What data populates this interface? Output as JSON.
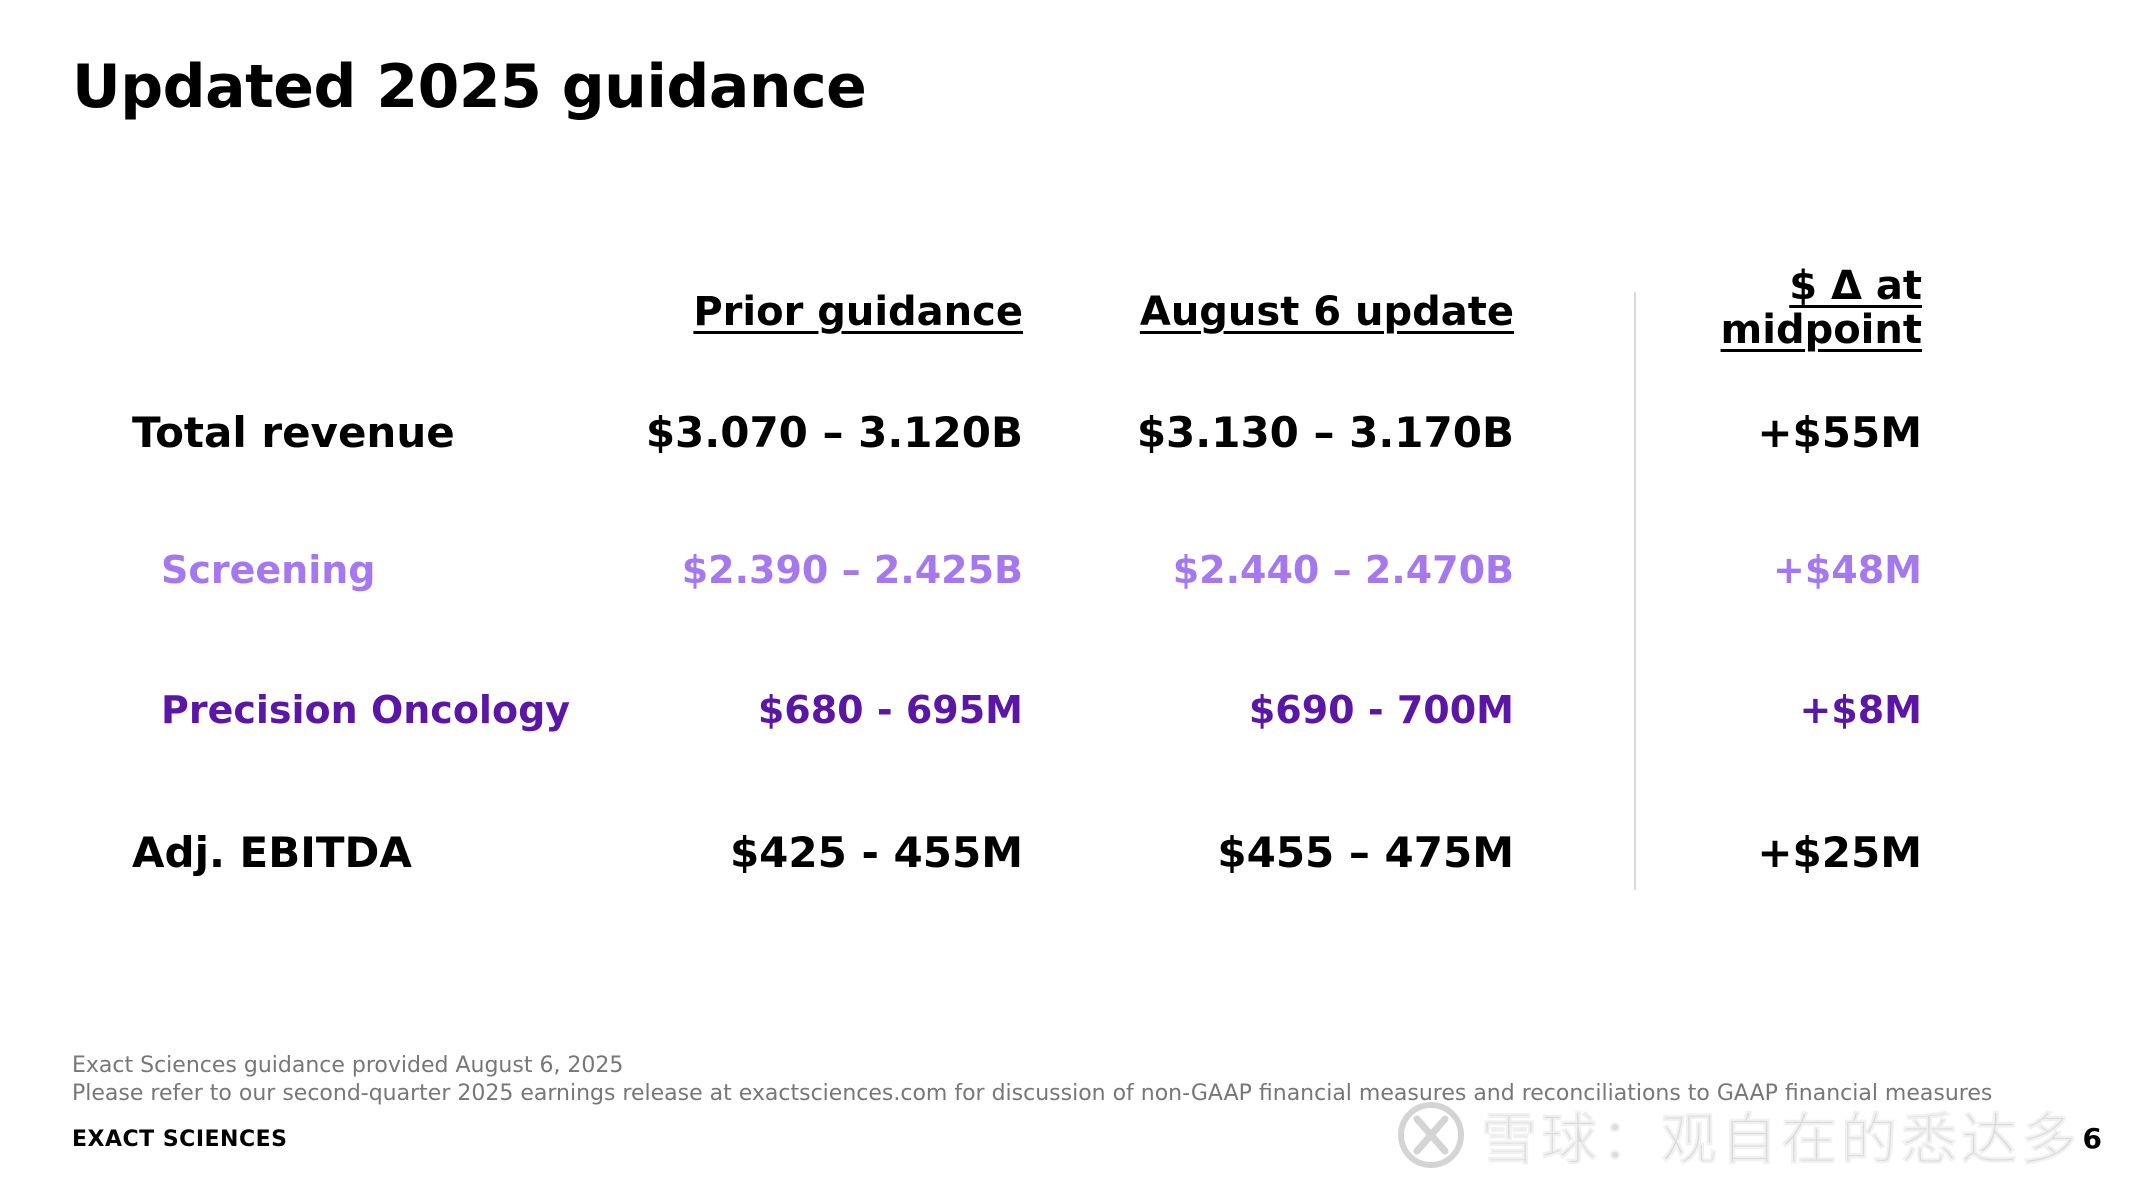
{
  "slide": {
    "title": "Updated 2025 guidance",
    "page_number": "6",
    "brand": "EXACT SCIENCES"
  },
  "table": {
    "headers": {
      "prior": "Prior guidance",
      "august": "August 6 update",
      "delta_line1": "$ Δ at",
      "delta_line2": "midpoint"
    },
    "rows": [
      {
        "label": "Total revenue",
        "prior": "$3.070 – 3.120B",
        "august": "$3.130 – 3.170B",
        "delta": "+$55M"
      },
      {
        "label": "Screening",
        "prior": "$2.390 – 2.425B",
        "august": "$2.440 – 2.470B",
        "delta": "+$48M"
      },
      {
        "label": "Precision Oncology",
        "prior": "$680 - 695M",
        "august": "$690 - 700M",
        "delta": "+$8M"
      },
      {
        "label": "Adj. EBITDA",
        "prior": "$425 - 455M",
        "august": "$455 – 475M",
        "delta": "+$25M"
      }
    ]
  },
  "colors": {
    "screening": "#a578f0",
    "oncology": "#5b16a6",
    "footnote": "#777777"
  },
  "footnotes": {
    "line1": "Exact Sciences guidance provided August 6, 2025",
    "line2": "Please refer to our second-quarter 2025 earnings release at exactsciences.com for discussion of non-GAAP financial measures and reconciliations to GAAP financial measures"
  },
  "watermark": {
    "text": "雪球：观自在的悉达多",
    "icon": "snowball-logo-icon"
  }
}
